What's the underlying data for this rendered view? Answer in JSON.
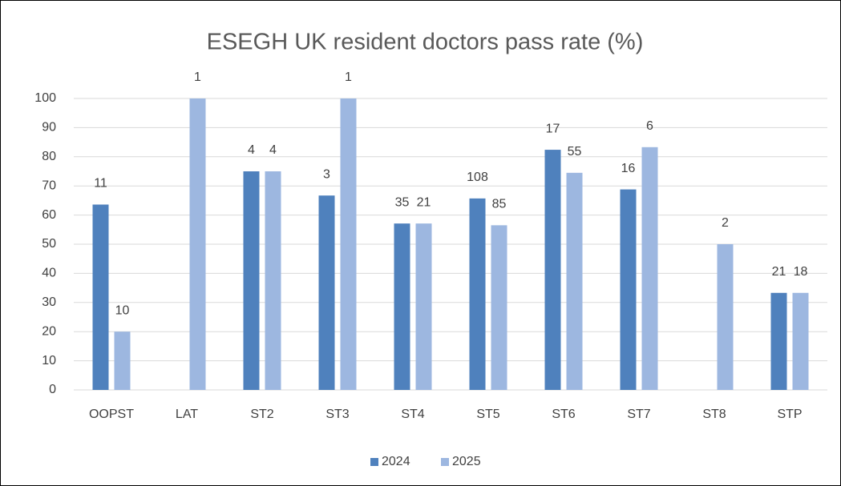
{
  "chart_data": {
    "type": "bar",
    "title": "ESEGH UK resident doctors pass rate (%)",
    "categories": [
      "OOPST",
      "LAT",
      "ST2",
      "ST3",
      "ST4",
      "ST5",
      "ST6",
      "ST7",
      "ST8",
      "STP"
    ],
    "series": [
      {
        "name": "2024",
        "color": "#4f81bd",
        "values": [
          63.6,
          null,
          75,
          66.7,
          57.1,
          65.7,
          82.4,
          68.8,
          null,
          33.3
        ],
        "data_labels": [
          11,
          null,
          4,
          3,
          35,
          108,
          17,
          16,
          null,
          21
        ]
      },
      {
        "name": "2025",
        "color": "#9db7e0",
        "values": [
          20,
          100,
          75,
          100,
          57.1,
          56.5,
          74.5,
          83.3,
          50,
          33.3
        ],
        "data_labels": [
          10,
          1,
          4,
          1,
          21,
          85,
          55,
          6,
          2,
          18
        ]
      }
    ],
    "ylim": [
      0,
      100
    ],
    "yticks": [
      0,
      10,
      20,
      30,
      40,
      50,
      60,
      70,
      80,
      90,
      100
    ],
    "grid": true,
    "legend": "bottom"
  }
}
